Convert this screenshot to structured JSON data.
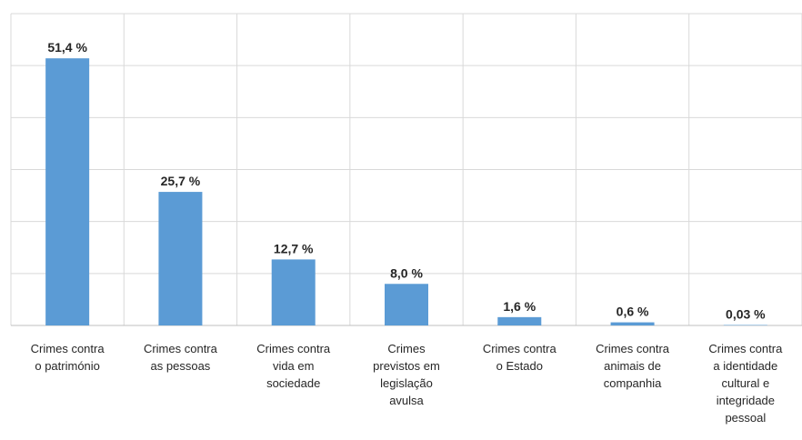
{
  "chart_data": {
    "type": "bar",
    "title": "",
    "xlabel": "",
    "ylabel": "",
    "ylim": [
      0,
      60
    ],
    "grid": true,
    "legend": "none",
    "bar_color": "#5b9bd5",
    "categories": [
      [
        "Crimes contra",
        "o património"
      ],
      [
        "Crimes contra",
        "as pessoas"
      ],
      [
        "Crimes contra",
        "vida em",
        "sociedade"
      ],
      [
        "Crimes",
        "previstos em",
        "legislação",
        "avulsa"
      ],
      [
        "Crimes contra",
        "o Estado"
      ],
      [
        "Crimes contra",
        "animais de",
        "companhia"
      ],
      [
        "Crimes contra",
        "a identidade",
        "cultural e",
        "integridade",
        "pessoal"
      ]
    ],
    "values": [
      51.4,
      25.7,
      12.7,
      8.0,
      1.6,
      0.6,
      0.03
    ],
    "data_labels": [
      "51,4 %",
      "25,7 %",
      "12,7 %",
      "8,0 %",
      "1,6 %",
      "0,6 %",
      "0,03 %"
    ]
  }
}
